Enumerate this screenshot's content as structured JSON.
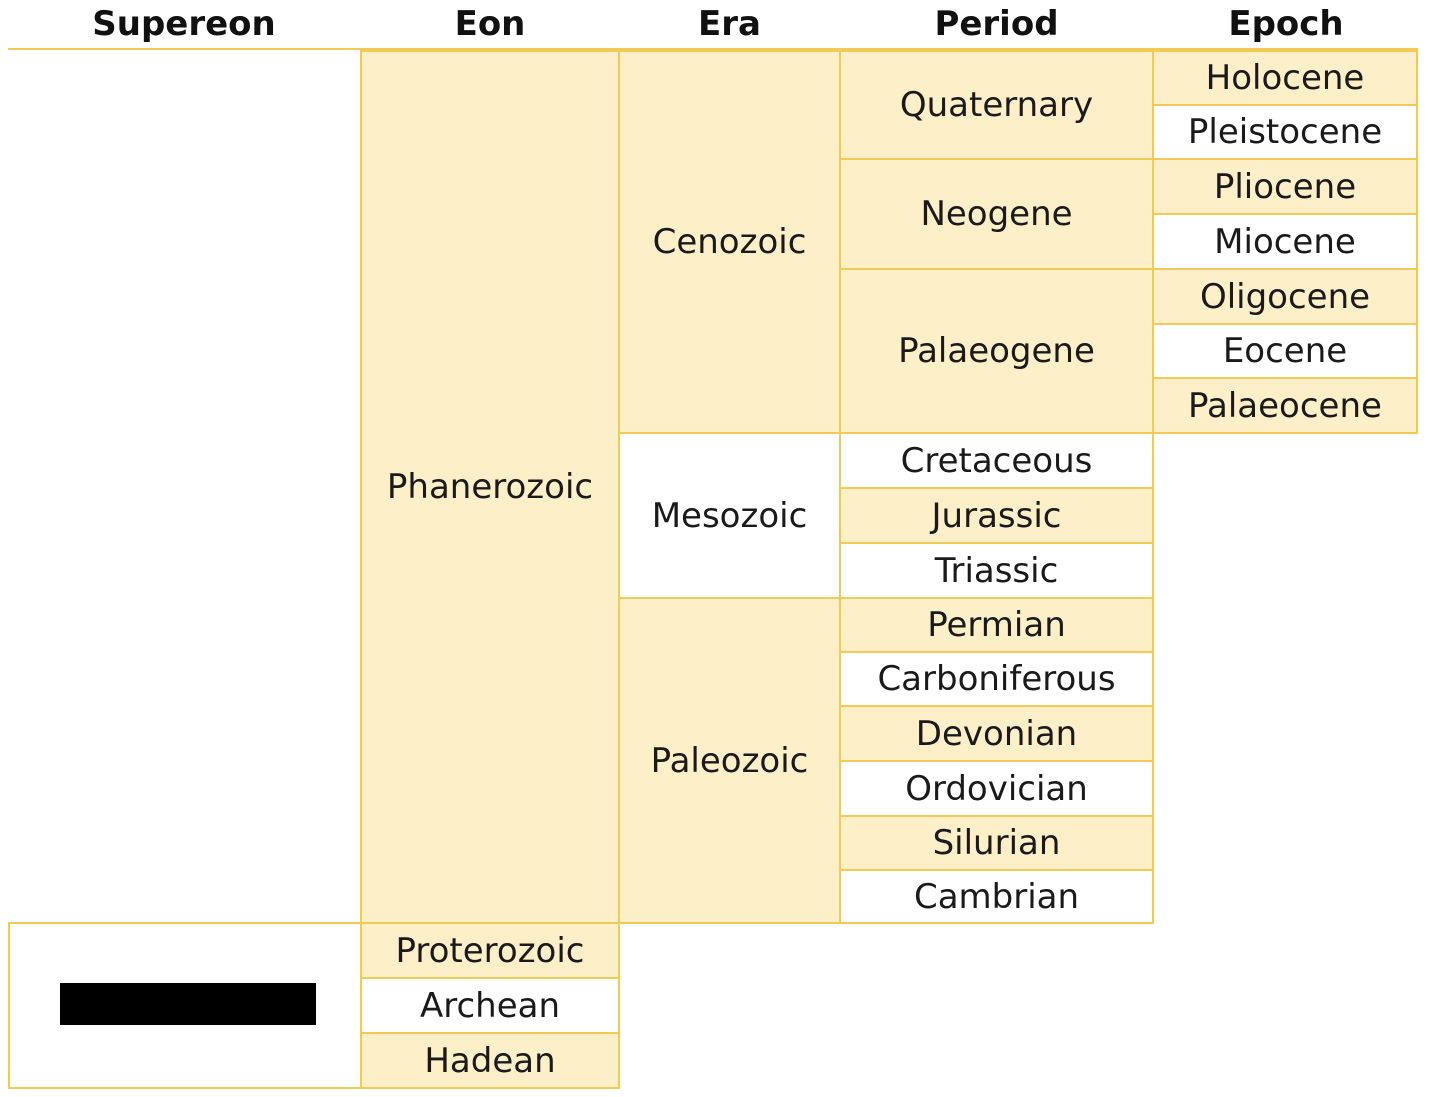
{
  "headers": {
    "supereon": "Supereon",
    "eon": "Eon",
    "era": "Era",
    "period": "Period",
    "epoch": "Epoch"
  },
  "eons": {
    "phanerozoic": "Phanerozoic",
    "proterozoic": "Proterozoic",
    "archean": "Archean",
    "hadean": "Hadean"
  },
  "eras": {
    "cenozoic": "Cenozoic",
    "mesozoic": "Mesozoic",
    "paleozoic": "Paleozoic"
  },
  "periods": {
    "quaternary": "Quaternary",
    "neogene": "Neogene",
    "palaeogene": "Palaeogene",
    "cretaceous": "Cretaceous",
    "jurassic": "Jurassic",
    "triassic": "Triassic",
    "permian": "Permian",
    "carboniferous": "Carboniferous",
    "devonian": "Devonian",
    "ordovician": "Ordovician",
    "silurian": "Silurian",
    "cambrian": "Cambrian"
  },
  "epochs": {
    "holocene": "Holocene",
    "pleistocene": "Pleistocene",
    "pliocene": "Pliocene",
    "miocene": "Miocene",
    "oligocene": "Oligocene",
    "eocene": "Eocene",
    "palaeocene": "Palaeocene"
  },
  "colors": {
    "fill": "#fdefc8",
    "border": "#f4ca56",
    "redaction": "#000000"
  }
}
